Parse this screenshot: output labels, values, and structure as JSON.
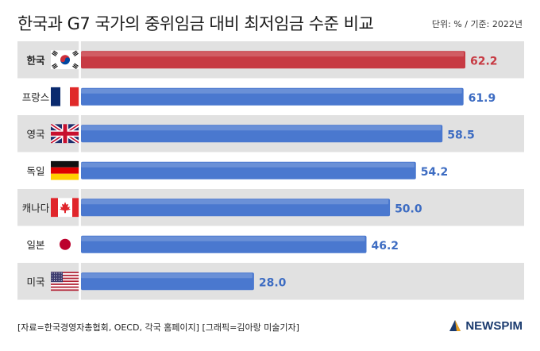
{
  "title": "한국과 G7 국가의 중위임금 대비 최저임금 수준 비교",
  "unit": "단위: % / 기준: 2022년",
  "footer": "[자료=한국경영자총협회, OECD, 각국 홈페이지] [그래픽=김아랑 미술기자]",
  "logo": "NEWSPIM",
  "colors": {
    "highlight": "#c73a43",
    "bar": "#4a78cf",
    "highlight_label": "#c73a43",
    "label": "#3d6cc2",
    "row_shade": "#e1e1e1",
    "logo": "#1a3a6e"
  },
  "chart_data": {
    "type": "bar",
    "orientation": "horizontal",
    "categories": [
      "한국",
      "프랑스",
      "영국",
      "독일",
      "캐나다",
      "일본",
      "미국"
    ],
    "flags": [
      "korea-flag-icon",
      "france-flag-icon",
      "uk-flag-icon",
      "germany-flag-icon",
      "canada-flag-icon",
      "japan-flag-icon",
      "usa-flag-icon"
    ],
    "values": [
      62.2,
      61.9,
      58.5,
      54.2,
      50.0,
      46.2,
      28.0
    ],
    "value_labels": [
      "62.2",
      "61.9",
      "58.5",
      "54.2",
      "50.0",
      "46.2",
      "28.0"
    ],
    "highlight": "한국",
    "xlim": [
      0,
      62.2
    ],
    "grid": false,
    "legend": "none"
  }
}
